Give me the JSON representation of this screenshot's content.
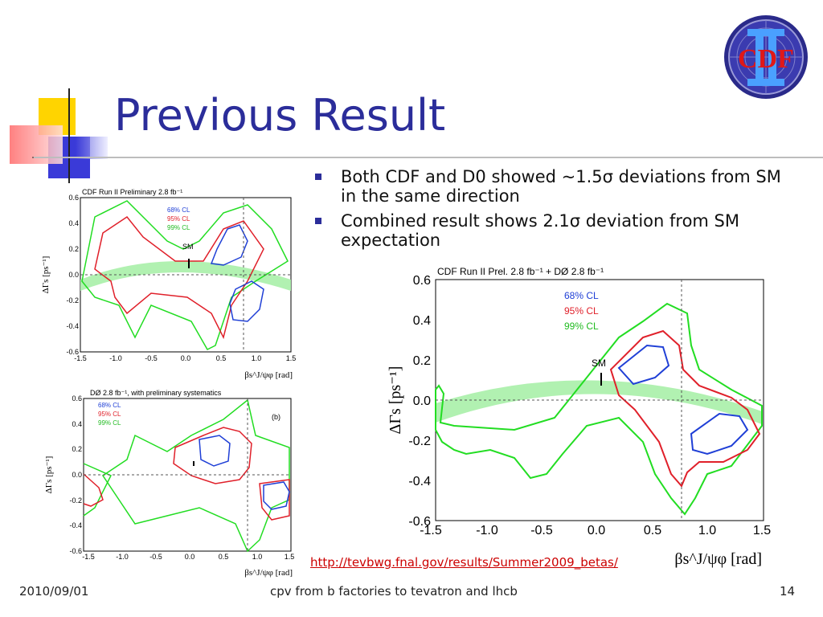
{
  "slide": {
    "title": "Previous Result",
    "bullets": [
      "Both CDF and D0 showed ~1.5σ deviations from SM in the same direction",
      "Combined result shows 2.1σ deviation from SM expectation"
    ],
    "link": "http://tevbwg.fnal.gov/results/Summer2009_betas/",
    "footer": {
      "date": "2010/09/01",
      "center": "cpv from b factories to tevatron and lhcb",
      "page": "14"
    },
    "logo_text": "CDF",
    "colors": {
      "title": "#2b2d9a",
      "bullet": "#2b2d9a",
      "link": "#cc0000",
      "cl68": "#1f3fd6",
      "cl95": "#e0202a",
      "cl99": "#22dd22",
      "sm_band": "#a8f0a8"
    }
  },
  "chart_data": [
    {
      "type": "contour",
      "title": "CDF Run II Preliminary 2.8 fb⁻¹",
      "xlabel": "βs^J/ψφ [rad]",
      "ylabel": "ΔΓs [ps⁻¹]",
      "xlim": [
        -1.5,
        1.5
      ],
      "ylim": [
        -0.6,
        0.6
      ],
      "xticks": [
        "-1.5",
        "-1.0",
        "-0.5",
        "0.0",
        "0.5",
        "1.0",
        "1.5"
      ],
      "yticks": [
        "0.6",
        "0.4",
        "0.2",
        "0.0",
        "-0.2",
        "-0.4",
        "-0.6"
      ],
      "legend": [
        "68% CL",
        "95% CL",
        "99% CL"
      ],
      "annotations": [
        "SM"
      ]
    },
    {
      "type": "contour",
      "title": "DØ 2.8 fb⁻¹, with preliminary systematics",
      "panel_label": "(b)",
      "xlabel": "βs^J/ψφ [rad]",
      "ylabel": "ΔΓs [ps⁻¹]",
      "xlim": [
        -1.5,
        1.5
      ],
      "ylim": [
        -0.6,
        0.6
      ],
      "xticks": [
        "-1.5",
        "-1.0",
        "-0.5",
        "0.0",
        "0.5",
        "1.0",
        "1.5"
      ],
      "yticks": [
        "0.6",
        "0.4",
        "0.2",
        "0.0",
        "-0.2",
        "-0.4",
        "-0.6"
      ],
      "legend": [
        "68% CL",
        "95% CL",
        "99% CL"
      ]
    },
    {
      "type": "contour",
      "title": "CDF Run II Prel. 2.8 fb⁻¹ + DØ 2.8 fb⁻¹",
      "xlabel": "βs^J/ψφ [rad]",
      "ylabel": "ΔΓs [ps⁻¹]",
      "xlim": [
        -1.5,
        1.5
      ],
      "ylim": [
        -0.6,
        0.6
      ],
      "xticks": [
        "-1.5",
        "-1.0",
        "-0.5",
        "0.0",
        "0.5",
        "1.0",
        "1.5"
      ],
      "yticks": [
        "0.6",
        "0.4",
        "0.2",
        "0.0",
        "-0.2",
        "-0.4",
        "-0.6"
      ],
      "legend": [
        "68% CL",
        "95% CL",
        "99% CL"
      ],
      "annotations": [
        "SM"
      ]
    }
  ]
}
